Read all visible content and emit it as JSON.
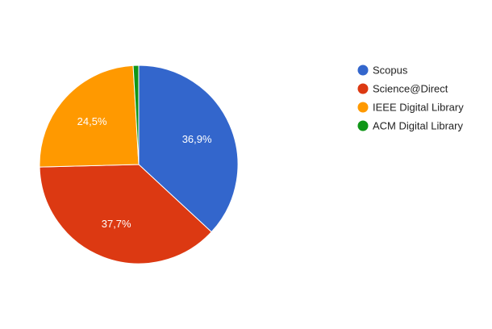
{
  "chart_data": {
    "type": "pie",
    "categories": [
      "Scopus",
      "Science@Direct",
      "IEEE Digital Library",
      "ACM Digital Library"
    ],
    "values": [
      36.9,
      37.7,
      24.5,
      0.9
    ],
    "data_labels": [
      "36,9%",
      "37,7%",
      "24,5%",
      ""
    ],
    "colors": [
      "#3366cc",
      "#dc3912",
      "#ff9900",
      "#109618"
    ],
    "legend_position": "right"
  }
}
